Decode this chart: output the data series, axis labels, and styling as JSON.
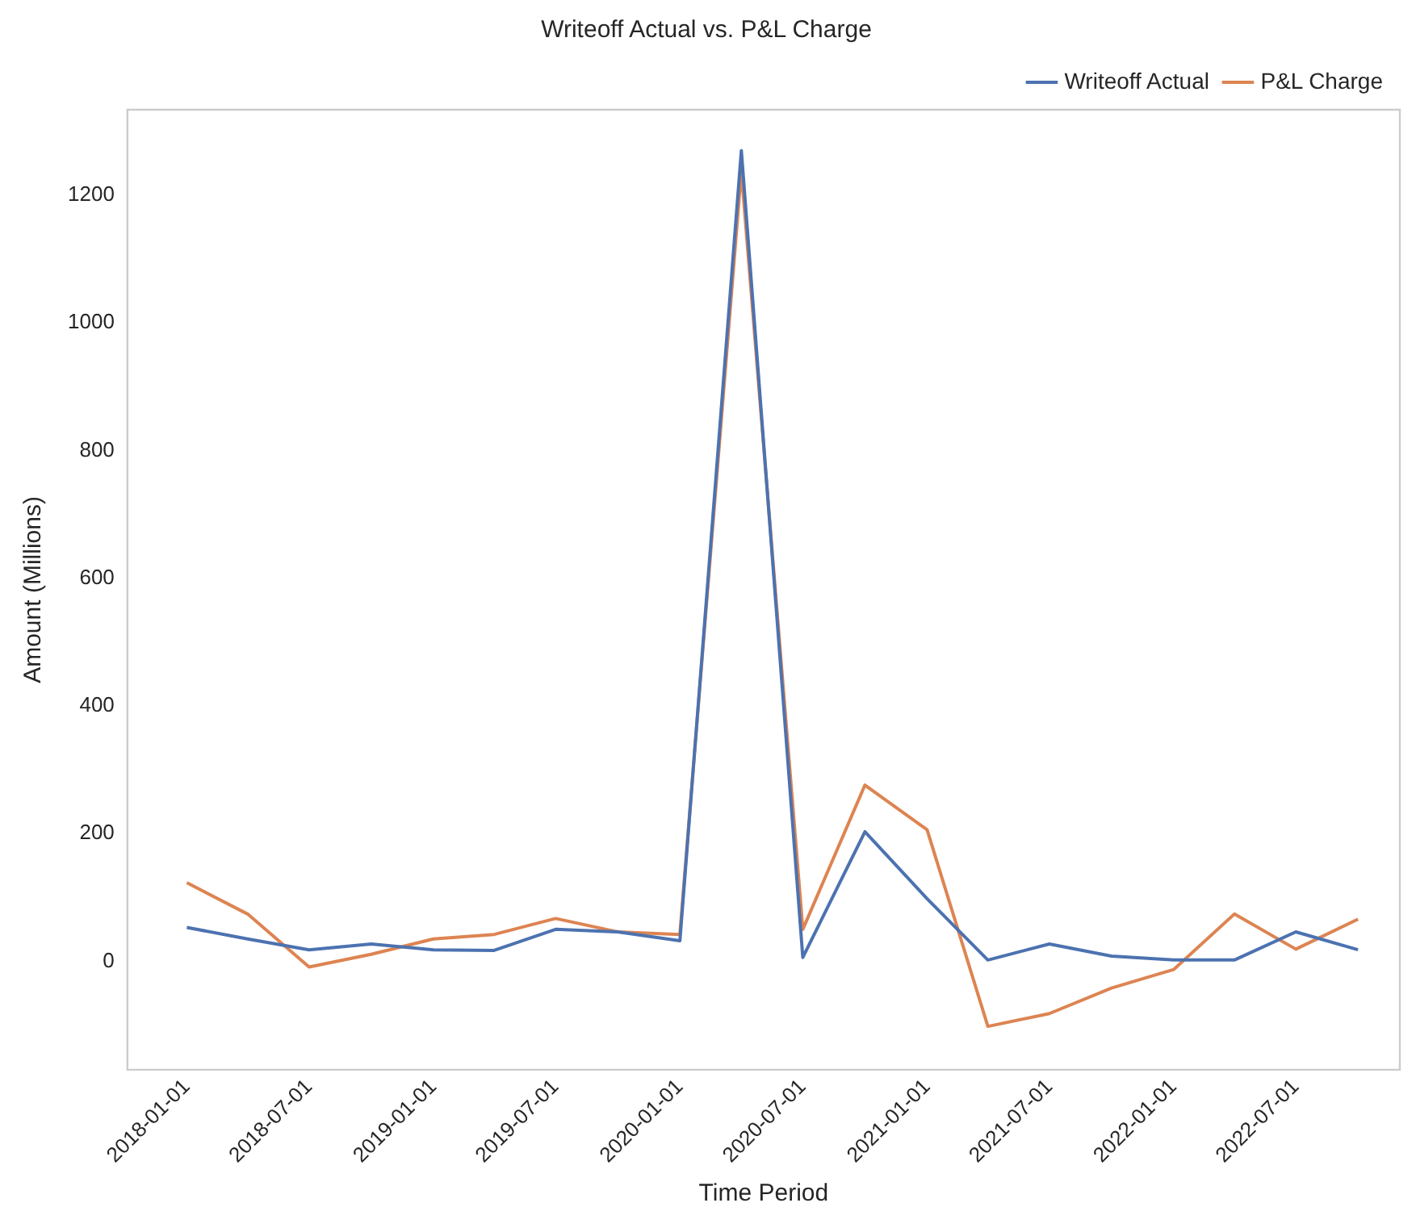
{
  "chart_data": {
    "type": "line",
    "title": "Writeoff Actual vs. P&L Charge",
    "xlabel": "Time Period",
    "ylabel": "Amount (Millions)",
    "x": [
      "2018-01-01",
      "2018-04-01",
      "2018-07-01",
      "2018-10-01",
      "2019-01-01",
      "2019-04-01",
      "2019-07-01",
      "2019-10-01",
      "2020-01-01",
      "2020-04-01",
      "2020-07-01",
      "2020-10-01",
      "2021-01-01",
      "2021-04-01",
      "2021-07-01",
      "2021-10-01",
      "2022-01-01",
      "2022-04-01",
      "2022-07-01",
      "2022-10-01"
    ],
    "series": [
      {
        "name": "Writeoff Actual",
        "color": "#4c72b0",
        "values": [
          53,
          35,
          18,
          27,
          18,
          17,
          50,
          46,
          32,
          1270,
          6,
          203,
          98,
          2,
          27,
          8,
          2,
          2,
          46,
          18
        ]
      },
      {
        "name": "P&L Charge",
        "color": "#dd8452",
        "values": [
          123,
          74,
          -9,
          11,
          35,
          42,
          67,
          46,
          42,
          1238,
          50,
          276,
          206,
          -102,
          -82,
          -42,
          -13,
          74,
          19,
          66
        ]
      }
    ],
    "xlim": [
      "2017-10-05",
      "2022-12-02"
    ],
    "xticks": [
      "2018-01-01",
      "2018-07-01",
      "2019-01-01",
      "2019-07-01",
      "2020-01-01",
      "2020-07-01",
      "2021-01-01",
      "2021-07-01",
      "2022-01-01",
      "2022-07-01"
    ],
    "ylim": [
      -170,
      1334
    ],
    "yticks": [
      0,
      200,
      400,
      600,
      800,
      1000,
      1200
    ],
    "grid": false,
    "legend": "top right",
    "marker": "none",
    "line_style": "solid"
  }
}
